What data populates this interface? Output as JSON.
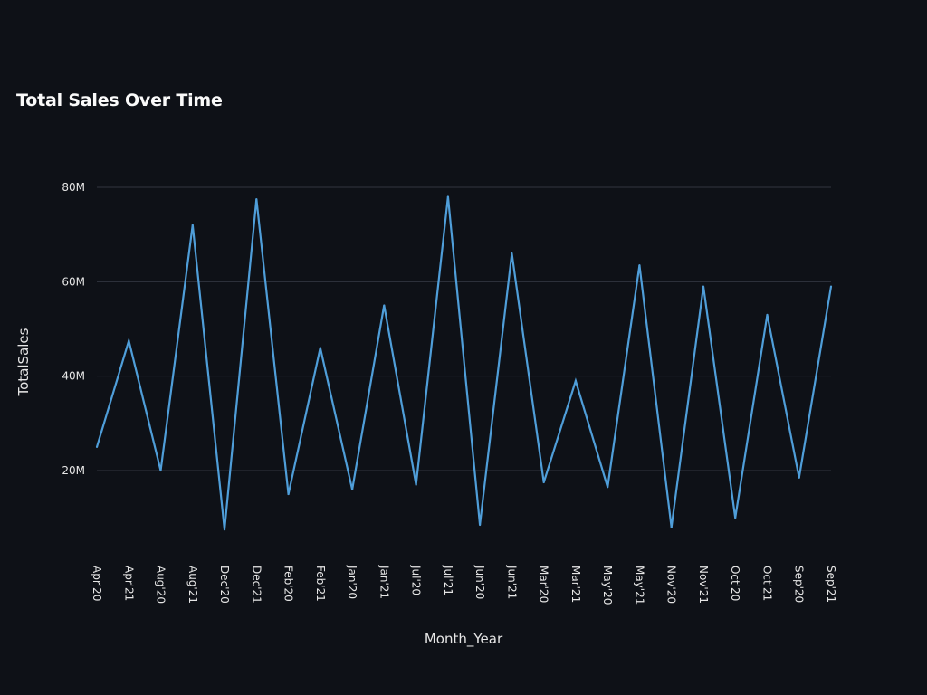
{
  "chart_data": {
    "type": "line",
    "title": "Total Sales Over Time",
    "xlabel": "Month_Year",
    "ylabel": "TotalSales",
    "ylim": [
      6000000,
      86000000
    ],
    "yticks": [
      20000000,
      40000000,
      60000000,
      80000000
    ],
    "ytick_labels": [
      "20M",
      "40M",
      "60M",
      "80M"
    ],
    "grid": true,
    "legend": "none",
    "categories": [
      "Apr'20",
      "Apr'21",
      "Aug'20",
      "Aug'21",
      "Dec'20",
      "Dec'21",
      "Feb'20",
      "Feb'21",
      "Jan'20",
      "Jan'21",
      "Jul'20",
      "Jul'21",
      "Jun'20",
      "Jun'21",
      "Mar'20",
      "Mar'21",
      "May'20",
      "May'21",
      "Nov'20",
      "Nov'21",
      "Oct'20",
      "Oct'21",
      "Sep'20",
      "Sep'21"
    ],
    "series": [
      {
        "values": [
          25000000,
          47500000,
          20000000,
          72000000,
          7500000,
          77500000,
          15000000,
          46000000,
          16000000,
          55000000,
          17000000,
          78000000,
          8500000,
          66000000,
          17500000,
          39000000,
          16500000,
          63500000,
          8000000,
          59000000,
          10000000,
          53000000,
          18500000,
          59000000
        ],
        "color": "#4f9ed9"
      }
    ]
  }
}
